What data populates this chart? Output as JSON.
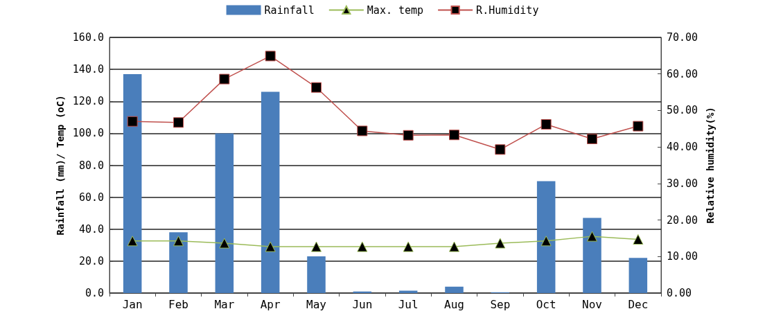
{
  "chart_data": {
    "type": "bar",
    "categories": [
      "Jan",
      "Feb",
      "Mar",
      "Apr",
      "May",
      "Jun",
      "Jul",
      "Aug",
      "Sep",
      "Oct",
      "Nov",
      "Dec"
    ],
    "series": [
      {
        "name": "Rainfall",
        "color": "#4a7ebb",
        "values": [
          137,
          38,
          100,
          126,
          23,
          1,
          1.5,
          4,
          0.5,
          70,
          47,
          22
        ]
      },
      {
        "name": "Max. temp",
        "type": "line",
        "color": "#9bbb59",
        "marker": "triangle",
        "values": [
          32.6,
          32.6,
          31.2,
          29,
          29,
          29,
          29,
          29,
          31.2,
          32.6,
          35.5,
          33.6
        ]
      },
      {
        "name": "R.Humidity",
        "type": "line",
        "axis": "y2",
        "color": "#c0504d",
        "marker": "square",
        "values": [
          47,
          46.7,
          58.6,
          64.9,
          56.3,
          44.4,
          43.2,
          43.3,
          39.3,
          46.2,
          42.2,
          45.7
        ]
      }
    ],
    "ylabel": "Rainfall (mm)/ Temp (oC)",
    "y2label": "Relative humidity(%)",
    "ylim": [
      0,
      160
    ],
    "yticks": [
      {
        "value": 0,
        "label": "0.0"
      },
      {
        "value": 20,
        "label": "20.0"
      },
      {
        "value": 40,
        "label": "40.0"
      },
      {
        "value": 60,
        "label": "60.0"
      },
      {
        "value": 80,
        "label": "80.0"
      },
      {
        "value": 100,
        "label": "100.0"
      },
      {
        "value": 120,
        "label": "120.0"
      },
      {
        "value": 140,
        "label": "140.0"
      },
      {
        "value": 160,
        "label": "160.0"
      }
    ],
    "y2lim": [
      0,
      70
    ],
    "y2ticks": [
      {
        "value": 0,
        "label": "0.00"
      },
      {
        "value": 10,
        "label": "10.00"
      },
      {
        "value": 20,
        "label": "20.00"
      },
      {
        "value": 30,
        "label": "30.00"
      },
      {
        "value": 40,
        "label": "40.00"
      },
      {
        "value": 50,
        "label": "50.00"
      },
      {
        "value": 60,
        "label": "60.00"
      },
      {
        "value": 70,
        "label": "70.00"
      }
    ],
    "grid": "y",
    "legend": "top"
  }
}
